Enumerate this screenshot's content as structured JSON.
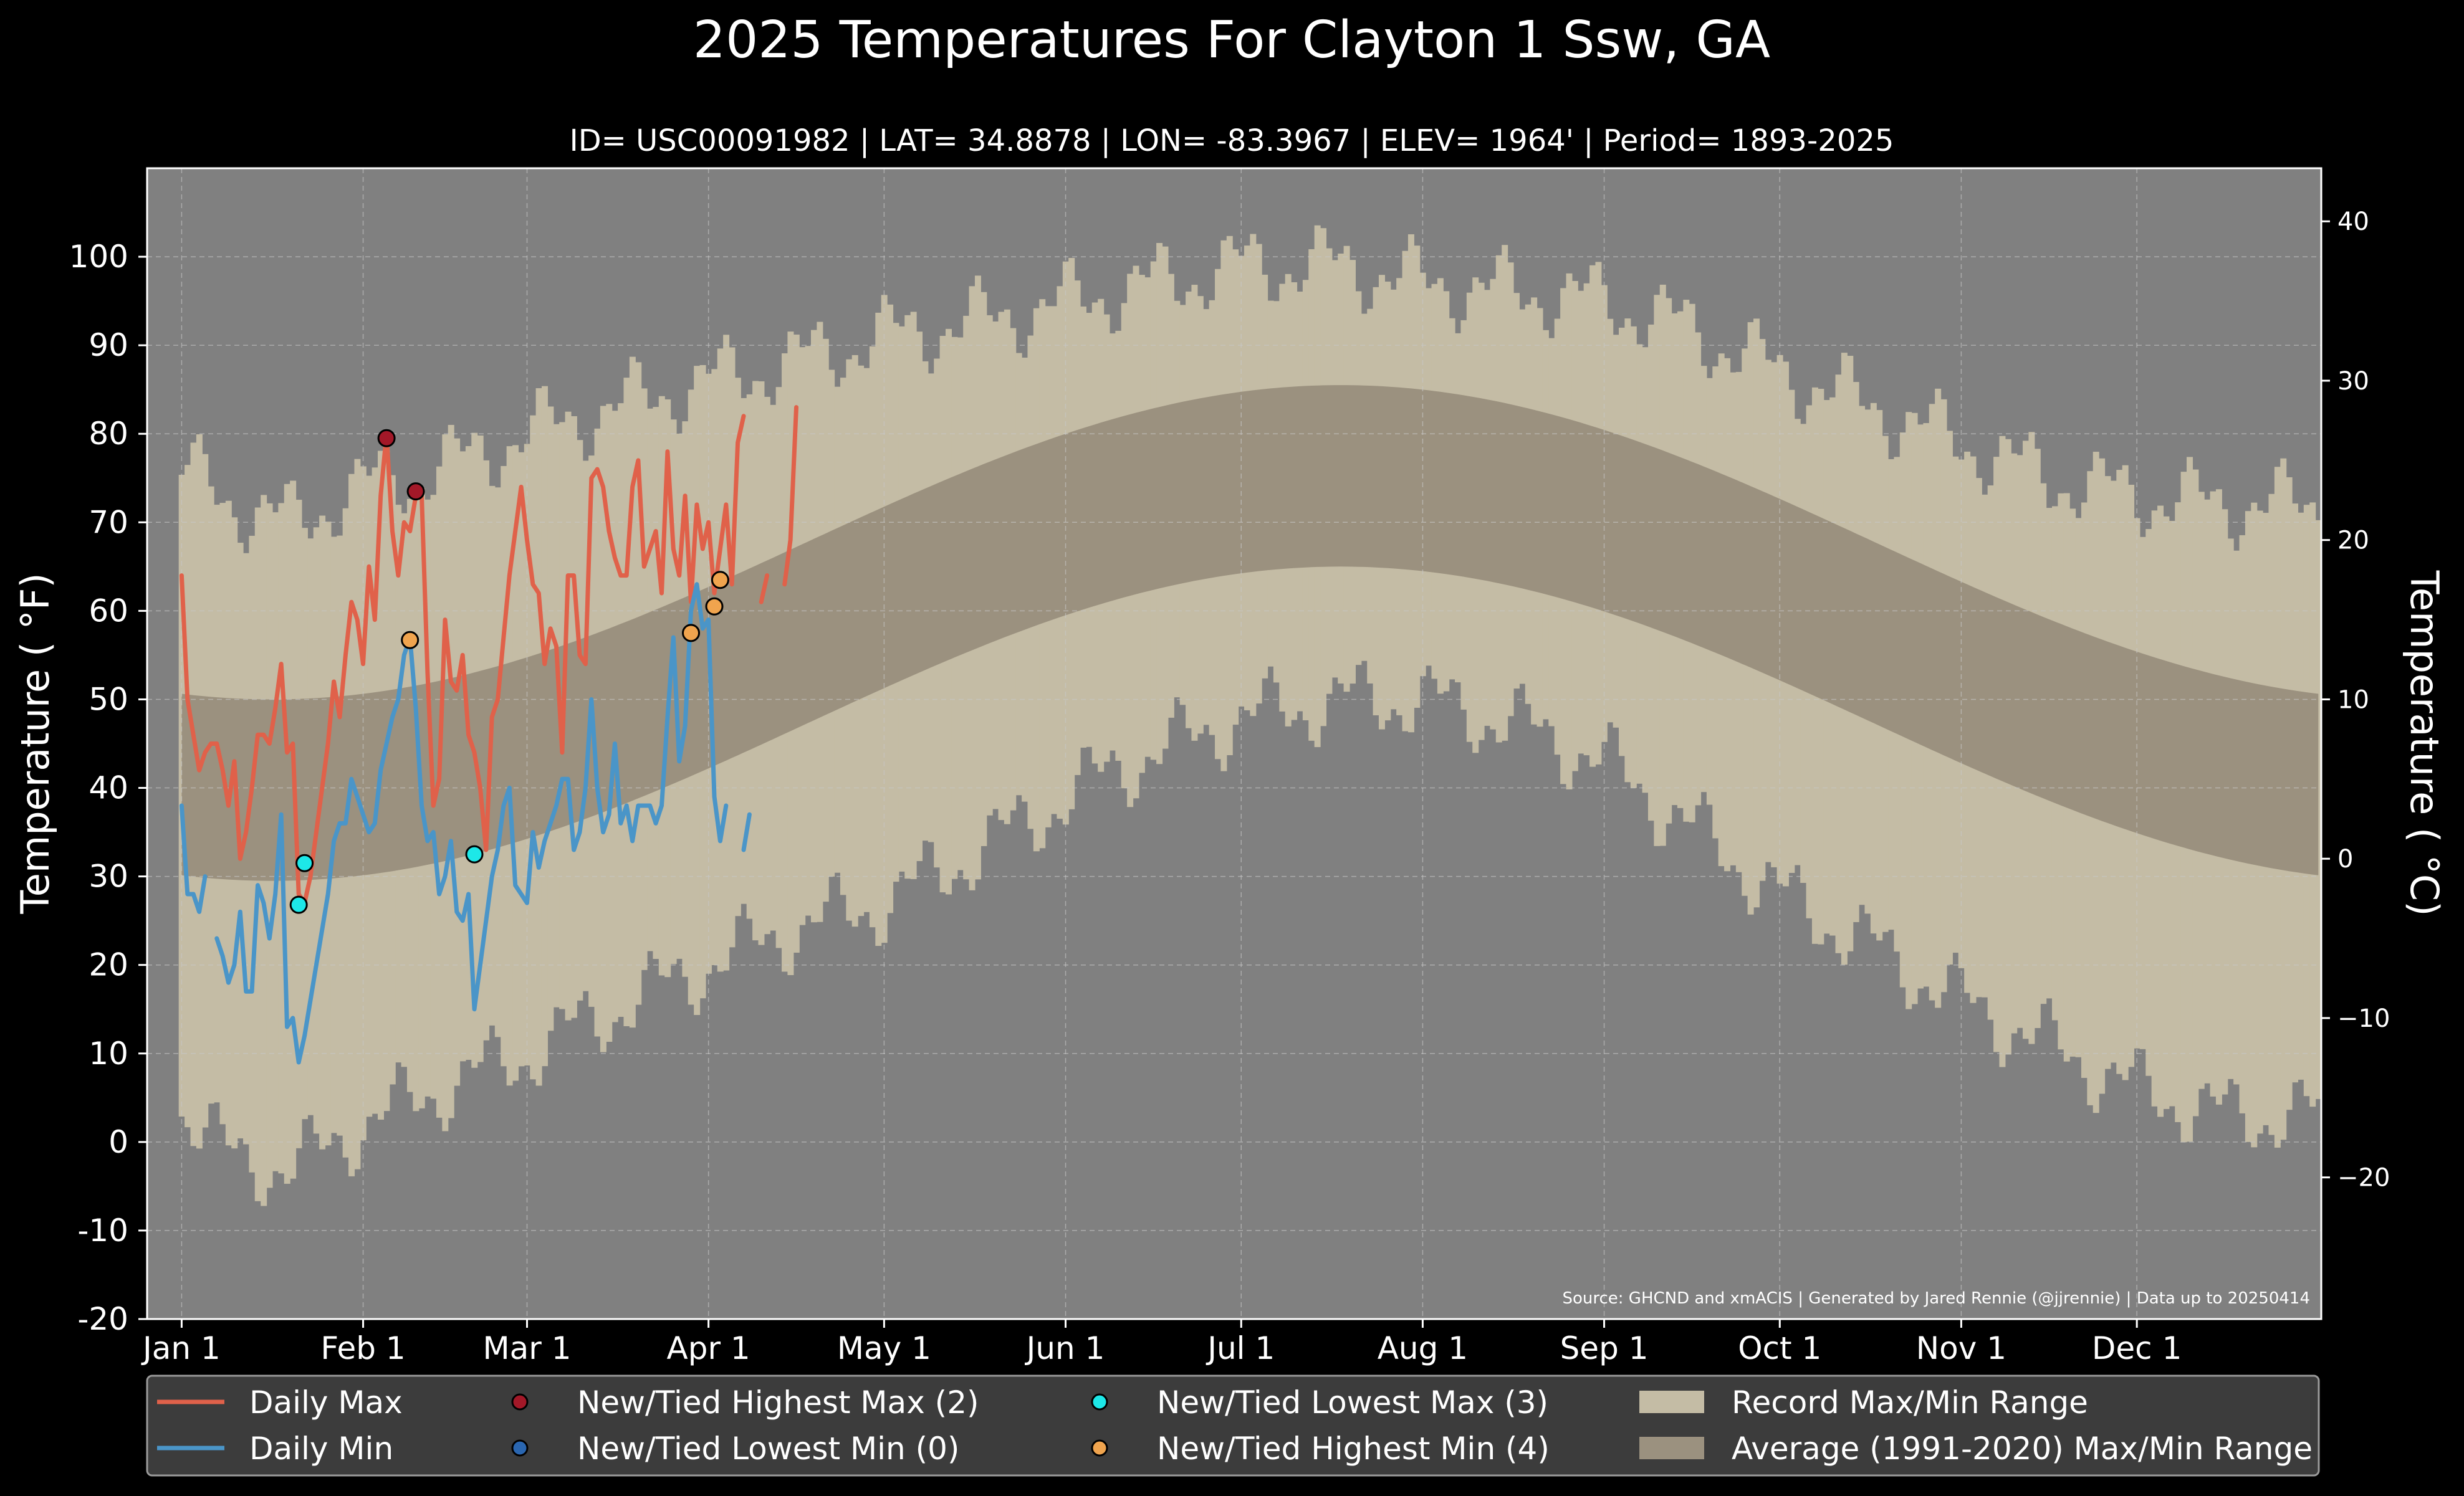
{
  "chart_data": {
    "type": "line",
    "title": "2025 Temperatures For Clayton 1 Ssw, GA",
    "subtitle": "ID= USC00091982 | LAT= 34.8878 | LON= -83.3967 | ELEV= 1964' | Period= 1893-2025",
    "ylabel_left": "Temperature ($^\\circ$F)",
    "ylabel_left_display": "Temperature ( °F)",
    "ylabel_right_display": "Temperature ( °C)",
    "ylim_f": [
      -20,
      110
    ],
    "yticks_f": [
      -20,
      -10,
      0,
      10,
      20,
      30,
      40,
      50,
      60,
      70,
      80,
      90,
      100
    ],
    "yticks_c": [
      "−20",
      "−10",
      "0",
      "10",
      "20",
      "30",
      "40"
    ],
    "yticks_c_values": [
      -20,
      -10,
      0,
      10,
      20,
      30,
      40
    ],
    "x_tick_labels": [
      "Jan 1",
      "Feb 1",
      "Mar 1",
      "Apr 1",
      "May 1",
      "Jun 1",
      "Jul 1",
      "Aug 1",
      "Sep 1",
      "Oct 1",
      "Nov 1",
      "Dec 1"
    ],
    "x_tick_days": [
      1,
      32,
      60,
      91,
      121,
      152,
      182,
      213,
      244,
      274,
      305,
      335
    ],
    "grid": true,
    "source": "Source: GHCND and xmACIS | Generated by Jared Rennie (@jjrennie) | Data up to 20250414",
    "record_high_anchors": [
      [
        1,
        76
      ],
      [
        10,
        72
      ],
      [
        20,
        70
      ],
      [
        32,
        74
      ],
      [
        45,
        76
      ],
      [
        60,
        80
      ],
      [
        75,
        83
      ],
      [
        91,
        86
      ],
      [
        105,
        88
      ],
      [
        121,
        91
      ],
      [
        140,
        93
      ],
      [
        160,
        96
      ],
      [
        182,
        99
      ],
      [
        200,
        99
      ],
      [
        213,
        97
      ],
      [
        230,
        96
      ],
      [
        244,
        95
      ],
      [
        258,
        92
      ],
      [
        274,
        87
      ],
      [
        290,
        83
      ],
      [
        305,
        79
      ],
      [
        320,
        75
      ],
      [
        335,
        73
      ],
      [
        350,
        72
      ],
      [
        366,
        72
      ]
    ],
    "record_low_anchors": [
      [
        1,
        4
      ],
      [
        10,
        -2
      ],
      [
        20,
        -3
      ],
      [
        32,
        2
      ],
      [
        45,
        6
      ],
      [
        60,
        10
      ],
      [
        75,
        15
      ],
      [
        91,
        20
      ],
      [
        105,
        24
      ],
      [
        121,
        27
      ],
      [
        140,
        34
      ],
      [
        160,
        42
      ],
      [
        182,
        48
      ],
      [
        200,
        50
      ],
      [
        213,
        50
      ],
      [
        230,
        47
      ],
      [
        244,
        43
      ],
      [
        258,
        36
      ],
      [
        274,
        28
      ],
      [
        290,
        22
      ],
      [
        305,
        16
      ],
      [
        320,
        11
      ],
      [
        335,
        6
      ],
      [
        350,
        3
      ],
      [
        366,
        3
      ]
    ],
    "normal_high": {
      "min": 50,
      "max": 85.5,
      "peak_day": 199
    },
    "normal_low": {
      "min": 29.5,
      "max": 65,
      "peak_day": 199
    },
    "series": [
      {
        "name": "Daily Max",
        "color": "#e0614a",
        "points": [
          [
            1,
            64
          ],
          [
            2,
            50
          ],
          [
            3,
            46
          ],
          [
            4,
            42
          ],
          [
            5,
            44
          ],
          [
            6,
            45
          ],
          [
            7,
            45
          ],
          [
            8,
            42
          ],
          [
            9,
            38
          ],
          [
            10,
            43
          ],
          [
            11,
            32
          ],
          [
            12,
            35
          ],
          [
            13,
            40
          ],
          [
            14,
            46
          ],
          [
            15,
            46
          ],
          [
            16,
            45
          ],
          [
            17,
            49
          ],
          [
            18,
            54
          ],
          [
            19,
            44
          ],
          [
            20,
            45
          ],
          [
            21,
            28
          ],
          [
            22,
            27
          ],
          [
            23,
            30
          ],
          [
            24,
            35
          ],
          [
            25,
            40
          ],
          [
            26,
            45
          ],
          [
            27,
            52
          ],
          [
            28,
            48
          ],
          [
            29,
            55
          ],
          [
            30,
            61
          ],
          [
            31,
            59
          ],
          [
            32,
            54
          ],
          [
            33,
            65
          ],
          [
            34,
            59
          ],
          [
            35,
            73
          ],
          [
            36,
            80
          ],
          [
            37,
            69
          ],
          [
            38,
            64
          ],
          [
            39,
            70
          ],
          [
            40,
            69
          ],
          [
            41,
            73
          ],
          [
            42,
            73
          ],
          [
            43,
            53
          ],
          [
            44,
            38
          ],
          [
            45,
            41
          ],
          [
            46,
            59
          ],
          [
            47,
            52
          ],
          [
            48,
            51
          ],
          [
            49,
            55
          ],
          [
            50,
            46
          ],
          [
            51,
            44
          ],
          [
            52,
            40
          ],
          [
            53,
            33
          ],
          [
            54,
            48
          ],
          [
            55,
            50
          ],
          [
            56,
            57
          ],
          [
            57,
            64
          ],
          [
            58,
            69
          ],
          [
            59,
            74
          ],
          [
            60,
            68
          ],
          [
            61,
            63
          ],
          [
            62,
            62
          ],
          [
            63,
            54
          ],
          [
            64,
            58
          ],
          [
            65,
            56
          ],
          [
            66,
            44
          ],
          [
            67,
            64
          ],
          [
            68,
            64
          ],
          [
            69,
            55
          ],
          [
            70,
            54
          ],
          [
            71,
            75
          ],
          [
            72,
            76
          ],
          [
            73,
            74
          ],
          [
            74,
            69
          ],
          [
            75,
            66
          ],
          [
            76,
            64
          ],
          [
            77,
            64
          ],
          [
            78,
            74
          ],
          [
            79,
            77
          ],
          [
            80,
            65
          ],
          [
            81,
            67
          ],
          [
            82,
            69
          ],
          [
            83,
            62
          ],
          [
            84,
            78
          ],
          [
            85,
            67
          ],
          [
            86,
            64
          ],
          [
            87,
            73
          ],
          [
            88,
            61
          ],
          [
            89,
            72
          ],
          [
            90,
            67
          ],
          [
            91,
            70
          ],
          [
            92,
            62
          ],
          [
            93,
            67
          ],
          [
            94,
            72
          ],
          [
            95,
            63
          ],
          [
            96,
            79
          ],
          [
            97,
            82
          ],
          [
            null,
            null
          ],
          [
            100,
            61
          ],
          [
            101,
            64
          ],
          [
            null,
            null
          ],
          [
            104,
            63
          ],
          [
            105,
            68
          ],
          [
            106,
            83
          ]
        ]
      },
      {
        "name": "Daily Min",
        "color": "#4a95c8",
        "points": [
          [
            1,
            38
          ],
          [
            2,
            28
          ],
          [
            3,
            28
          ],
          [
            4,
            26
          ],
          [
            5,
            30
          ],
          [
            null,
            null
          ],
          [
            7,
            23
          ],
          [
            8,
            21
          ],
          [
            9,
            18
          ],
          [
            10,
            20
          ],
          [
            11,
            26
          ],
          [
            12,
            17
          ],
          [
            13,
            17
          ],
          [
            14,
            29
          ],
          [
            15,
            27
          ],
          [
            16,
            23
          ],
          [
            17,
            28
          ],
          [
            18,
            37
          ],
          [
            19,
            13
          ],
          [
            20,
            14
          ],
          [
            21,
            9
          ],
          [
            22,
            12
          ],
          [
            23,
            16
          ],
          [
            24,
            20
          ],
          [
            25,
            24
          ],
          [
            26,
            28
          ],
          [
            27,
            34
          ],
          [
            28,
            36
          ],
          [
            29,
            36
          ],
          [
            30,
            41
          ],
          [
            31,
            39
          ],
          [
            32,
            37
          ],
          [
            33,
            35
          ],
          [
            34,
            36
          ],
          [
            35,
            42
          ],
          [
            36,
            45
          ],
          [
            37,
            48
          ],
          [
            38,
            50
          ],
          [
            39,
            55
          ],
          [
            40,
            57
          ],
          [
            41,
            49
          ],
          [
            42,
            38
          ],
          [
            43,
            34
          ],
          [
            44,
            35
          ],
          [
            45,
            28
          ],
          [
            46,
            30
          ],
          [
            47,
            34
          ],
          [
            48,
            26
          ],
          [
            49,
            25
          ],
          [
            50,
            28
          ],
          [
            51,
            15
          ],
          [
            52,
            20
          ],
          [
            53,
            25
          ],
          [
            54,
            30
          ],
          [
            55,
            33
          ],
          [
            56,
            38
          ],
          [
            57,
            40
          ],
          [
            58,
            29
          ],
          [
            59,
            28
          ],
          [
            60,
            27
          ],
          [
            61,
            35
          ],
          [
            62,
            31
          ],
          [
            63,
            34
          ],
          [
            64,
            36
          ],
          [
            65,
            38
          ],
          [
            66,
            41
          ],
          [
            67,
            41
          ],
          [
            68,
            33
          ],
          [
            69,
            35
          ],
          [
            70,
            40
          ],
          [
            71,
            50
          ],
          [
            72,
            40
          ],
          [
            73,
            35
          ],
          [
            74,
            37
          ],
          [
            75,
            45
          ],
          [
            76,
            36
          ],
          [
            77,
            38
          ],
          [
            78,
            34
          ],
          [
            79,
            38
          ],
          [
            80,
            38
          ],
          [
            81,
            38
          ],
          [
            82,
            36
          ],
          [
            83,
            38
          ],
          [
            84,
            48
          ],
          [
            85,
            57
          ],
          [
            86,
            43
          ],
          [
            87,
            47
          ],
          [
            88,
            60
          ],
          [
            89,
            63
          ],
          [
            90,
            58
          ],
          [
            91,
            59
          ],
          [
            92,
            39
          ],
          [
            93,
            34
          ],
          [
            94,
            38
          ],
          [
            null,
            null
          ],
          [
            97,
            33
          ],
          [
            98,
            37
          ]
        ]
      }
    ],
    "markers": [
      {
        "series": "New/Tied Highest Max",
        "color": "#a31828",
        "points": [
          [
            36,
            79.5
          ],
          [
            41,
            73.5
          ]
        ]
      },
      {
        "series": "New/Tied Lowest Max",
        "color": "#1de8e8",
        "points": [
          [
            21,
            26.8
          ],
          [
            22,
            31.5
          ],
          [
            51,
            32.5
          ]
        ]
      },
      {
        "series": "New/Tied Highest Min",
        "color": "#f0a44e",
        "points": [
          [
            40,
            56.7
          ],
          [
            88,
            57.5
          ],
          [
            92,
            60.5
          ],
          [
            93,
            63.5
          ]
        ]
      }
    ],
    "legend": {
      "position": "bottom",
      "entries": [
        {
          "label": "Daily Max",
          "kind": "line",
          "color": "#e0614a"
        },
        {
          "label": "New/Tied Highest Max (2)",
          "kind": "dot",
          "color": "#a31828"
        },
        {
          "label": "New/Tied Lowest Max (3)",
          "kind": "dot",
          "color": "#1de8e8"
        },
        {
          "label": "Record Max/Min Range",
          "kind": "patch",
          "color": "#c4bca5"
        },
        {
          "label": "Daily Min",
          "kind": "line",
          "color": "#4a95c8"
        },
        {
          "label": "New/Tied Lowest Min (0)",
          "kind": "dot",
          "color": "#2a66b0"
        },
        {
          "label": "New/Tied Highest Min (4)",
          "kind": "dot",
          "color": "#f0a44e"
        },
        {
          "label": "Average (1991-2020) Max/Min Range",
          "kind": "patch",
          "color": "#9b917f"
        }
      ]
    },
    "colors": {
      "page_background": "#000000",
      "plot_background": "#808080",
      "record_band": "#c4bca5",
      "normal_band": "#9b917f",
      "legend_background": "#3c3c3c"
    }
  }
}
